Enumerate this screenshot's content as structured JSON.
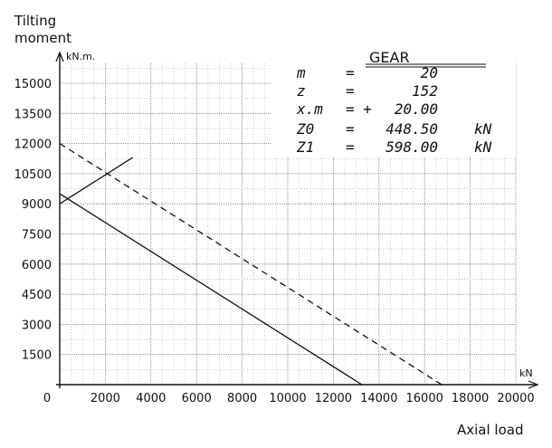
{
  "chart_data": {
    "type": "line",
    "ylabel": "Tilting moment",
    "yunit": "kN.m.",
    "xlabel": "Axial load",
    "xunit": "kN",
    "xlim": [
      0,
      20000
    ],
    "ylim": [
      0,
      16500
    ],
    "xticks": [
      "0",
      "2000",
      "4000",
      "6000",
      "8000",
      "10000",
      "12000",
      "14000",
      "16000",
      "18000",
      "20000"
    ],
    "yticks": [
      "1500",
      "3000",
      "4500",
      "6000",
      "7500",
      "9000",
      "10500",
      "12000",
      "13500",
      "15000"
    ],
    "grid": true,
    "series": [
      {
        "style": "solid",
        "points": [
          [
            0,
            9500
          ],
          [
            13250,
            0
          ]
        ]
      },
      {
        "style": "dashed",
        "points": [
          [
            0,
            12000
          ],
          [
            16750,
            0
          ]
        ]
      },
      {
        "style": "solid",
        "points": [
          [
            0,
            9000
          ],
          [
            3200,
            11300
          ]
        ]
      }
    ],
    "info_box": {
      "title": "GEAR",
      "rows": [
        {
          "label": "m",
          "sign": "=",
          "value": "20",
          "unit": ""
        },
        {
          "label": "z",
          "sign": "=",
          "value": "152",
          "unit": ""
        },
        {
          "label": "x.m",
          "sign": "= +",
          "value": "20.00",
          "unit": ""
        },
        {
          "label": "Z0",
          "sign": "=",
          "value": "448.50",
          "unit": "kN"
        },
        {
          "label": "Z1",
          "sign": "=",
          "value": "598.00",
          "unit": "kN"
        }
      ]
    }
  }
}
